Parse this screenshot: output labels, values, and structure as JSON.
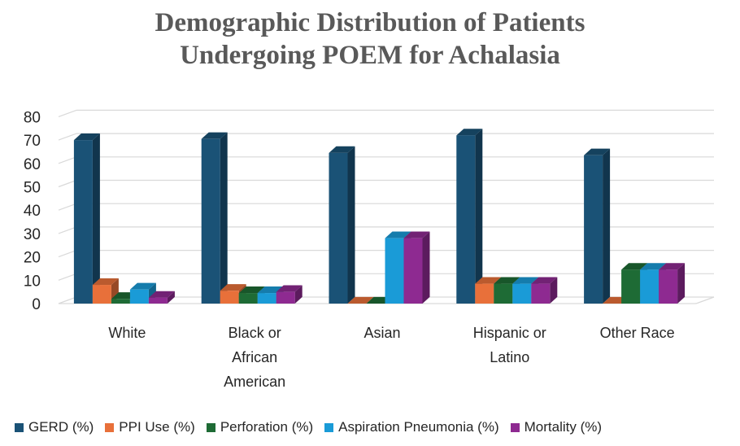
{
  "chart_data": {
    "type": "bar",
    "title_lines": [
      "Demographic Distribution of Patients",
      "Undergoing POEM for Achalasia"
    ],
    "categories": [
      [
        "White"
      ],
      [
        "Black or",
        "African",
        "American"
      ],
      [
        "Asian"
      ],
      [
        "Hispanic or",
        "Latino"
      ],
      [
        "Other Race"
      ]
    ],
    "yticks": [
      "0",
      "10",
      "20",
      "30",
      "40",
      "50",
      "60",
      "70",
      "80"
    ],
    "ylim": [
      0,
      80
    ],
    "grid": true,
    "legend_position": "bottom",
    "series": [
      {
        "name": "GERD (%)",
        "color": "#1a5276",
        "values": [
          70,
          70.5,
          64.5,
          72,
          63.5
        ]
      },
      {
        "name": "PPI Use (%)",
        "color": "#e8703a",
        "values": [
          8,
          5.5,
          0,
          8.5,
          0
        ]
      },
      {
        "name": "Perforation (%)",
        "color": "#1e6b35",
        "values": [
          2,
          4.5,
          0,
          8.5,
          14.5
        ]
      },
      {
        "name": "Aspiration Pneumonia (%)",
        "color": "#1a9bd7",
        "values": [
          6,
          4.5,
          28,
          8.5,
          14.5
        ]
      },
      {
        "name": "Mortality (%)",
        "color": "#8e2a91",
        "values": [
          2.5,
          5,
          28,
          8.5,
          14.5
        ]
      }
    ]
  }
}
